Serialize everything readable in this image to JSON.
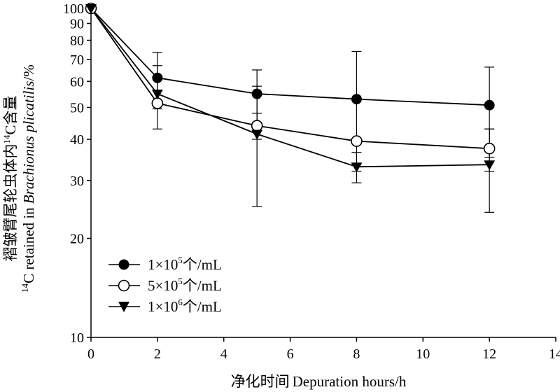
{
  "chart_data": {
    "type": "line",
    "xlabel": {
      "zh": "净化时间",
      "en": "Depuration hours/h"
    },
    "ylabel": {
      "line1": {
        "zh": "褶皱臂尾轮虫体内",
        "sup": "14",
        "suffix": "C含量"
      },
      "line2": {
        "sup": "14",
        "pre": "C retained in ",
        "italic": "Brachionus plicatilis",
        "suffix": "/%"
      }
    },
    "x_ticks": [
      0,
      2,
      4,
      6,
      8,
      10,
      12,
      14
    ],
    "y_ticks": [
      10,
      20,
      30,
      40,
      50,
      60,
      70,
      80,
      90,
      100
    ],
    "y_scale": "log",
    "xlim": [
      0,
      14
    ],
    "ylim": [
      10,
      100
    ],
    "grid": false,
    "legend_position": "bottom-left",
    "series": [
      {
        "name": {
          "pre": "1×10",
          "sup": "5",
          "post": "个/mL"
        },
        "marker": "filled-circle",
        "color": "#000000",
        "x": [
          0,
          2,
          5,
          8,
          12
        ],
        "y": [
          100,
          61.5,
          55,
          53,
          50.8
        ],
        "err": [
          0,
          12,
          10,
          21,
          15.5
        ]
      },
      {
        "name": {
          "pre": "5×10",
          "sup": "5",
          "post": "个/mL"
        },
        "marker": "open-circle",
        "color": "#000000",
        "x": [
          0,
          2,
          5,
          8,
          12
        ],
        "y": [
          100,
          51.5,
          44,
          39.5,
          37.5
        ],
        "err": [
          0,
          0,
          4,
          0,
          5.5
        ]
      },
      {
        "name": {
          "pre": "1×10",
          "sup": "6",
          "post": "个/mL"
        },
        "marker": "filled-triangle-down",
        "color": "#000000",
        "x": [
          0,
          2,
          5,
          8,
          12
        ],
        "y": [
          100,
          55,
          41.5,
          33,
          33.5
        ],
        "err": [
          0,
          12,
          16.5,
          3.5,
          9.5
        ]
      }
    ]
  }
}
